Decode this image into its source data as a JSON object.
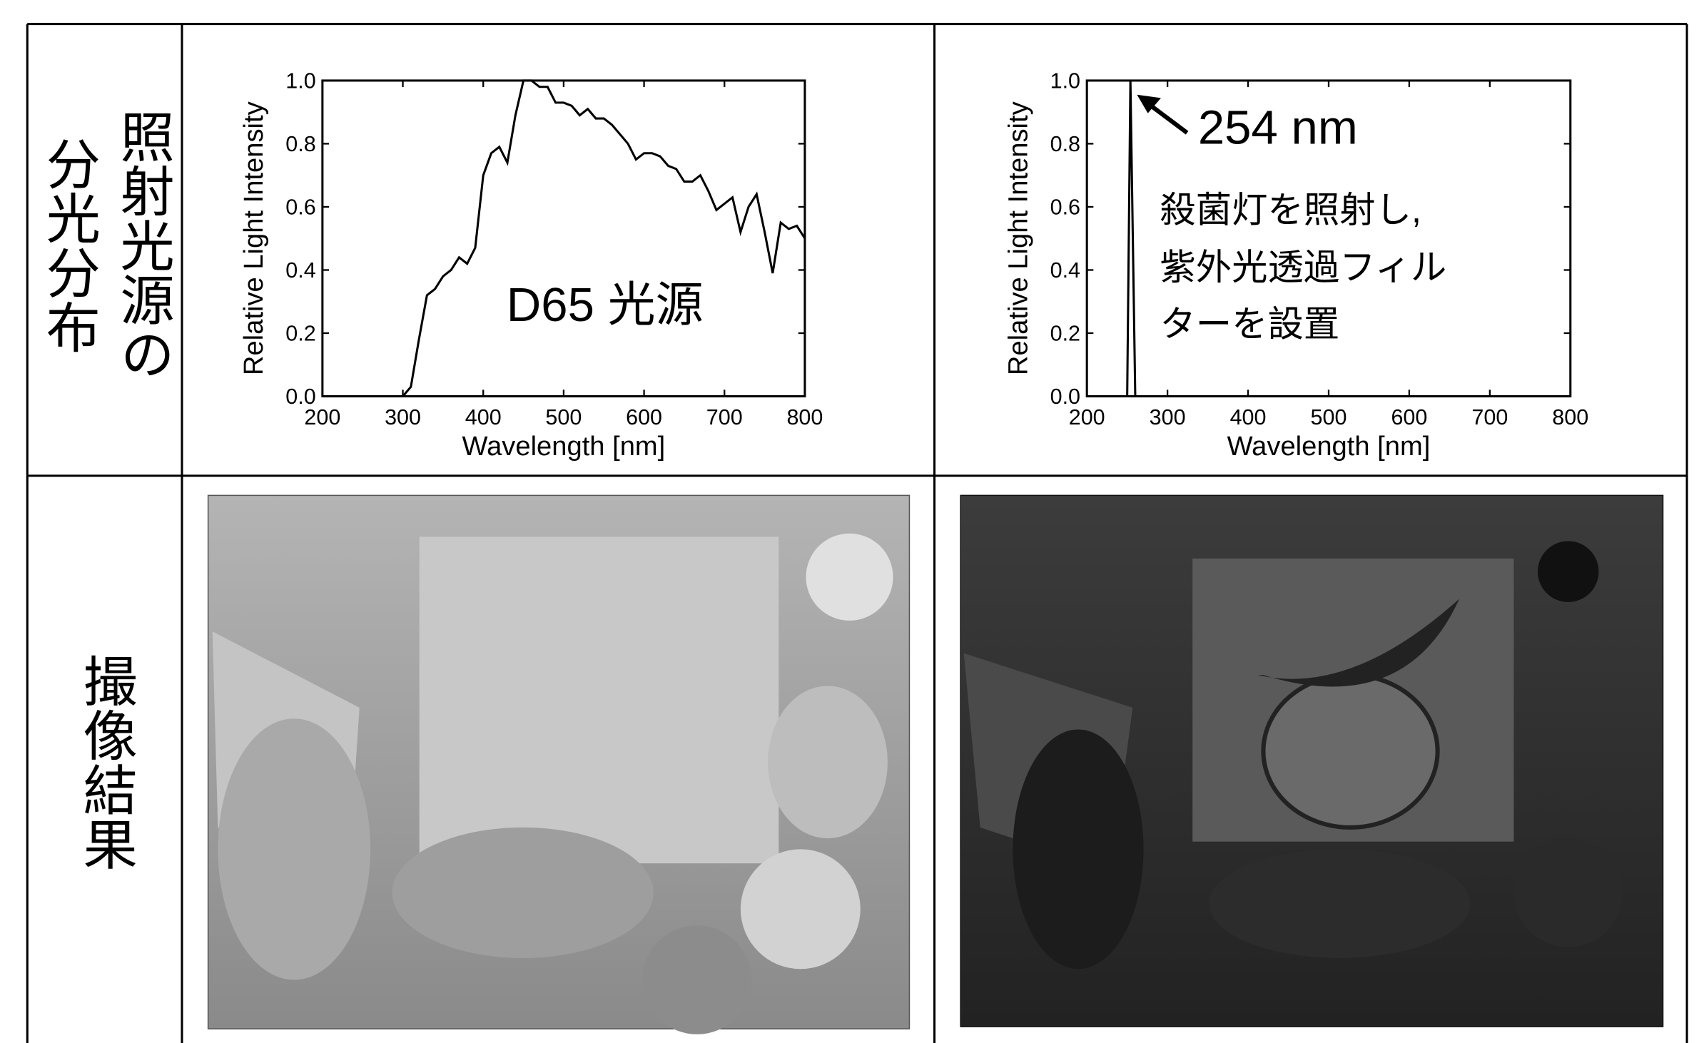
{
  "table": {
    "row_labels": [
      [
        "照射光源の",
        "分光分布"
      ],
      [
        "撮像結果"
      ]
    ]
  },
  "chart_data": [
    {
      "type": "line",
      "x": [
        300,
        310,
        320,
        330,
        340,
        350,
        360,
        370,
        380,
        390,
        400,
        410,
        420,
        430,
        440,
        450,
        460,
        470,
        480,
        490,
        500,
        510,
        520,
        530,
        540,
        550,
        560,
        570,
        580,
        590,
        600,
        610,
        620,
        630,
        640,
        650,
        660,
        670,
        680,
        690,
        700,
        710,
        720,
        730,
        740,
        750,
        760,
        770,
        780,
        790,
        800
      ],
      "series": [
        {
          "color": "#000000",
          "values": [
            0.0,
            0.03,
            0.18,
            0.32,
            0.34,
            0.38,
            0.4,
            0.44,
            0.42,
            0.47,
            0.7,
            0.77,
            0.79,
            0.74,
            0.89,
            1.0,
            1.0,
            0.98,
            0.98,
            0.93,
            0.93,
            0.92,
            0.89,
            0.91,
            0.88,
            0.88,
            0.86,
            0.83,
            0.8,
            0.75,
            0.77,
            0.77,
            0.76,
            0.73,
            0.72,
            0.68,
            0.68,
            0.7,
            0.65,
            0.59,
            0.61,
            0.63,
            0.52,
            0.6,
            0.64,
            0.52,
            0.39,
            0.55,
            0.53,
            0.54,
            0.5
          ]
        }
      ],
      "xlim": [
        200,
        800
      ],
      "ylim": [
        0,
        1
      ],
      "xticks": [
        200,
        300,
        400,
        500,
        600,
        700,
        800
      ],
      "yticks": [
        {
          "value": 0,
          "label": "0.0"
        },
        0.2,
        0.4,
        0.6,
        0.8,
        {
          "value": 1,
          "label": "1.0"
        }
      ],
      "xlabel": "Wavelength [nm]",
      "ylabel": "Relative Light Intensity",
      "annotations": [
        "D65 光源"
      ]
    },
    {
      "type": "line",
      "x": [
        250,
        254,
        260
      ],
      "series": [
        {
          "color": "#000000",
          "values": [
            0,
            1,
            0
          ]
        }
      ],
      "xlim": [
        200,
        800
      ],
      "ylim": [
        0,
        1
      ],
      "xticks": [
        200,
        300,
        400,
        500,
        600,
        700,
        800
      ],
      "yticks": [
        {
          "value": 0,
          "label": "0.0"
        },
        0.2,
        0.4,
        0.6,
        0.8,
        {
          "value": 1,
          "label": "1.0"
        }
      ],
      "xlabel": "Wavelength [nm]",
      "ylabel": "Relative Light Intensity",
      "annotations": [
        "254 nm",
        "殺菌灯を照射し,",
        "紫外光透過フィル",
        "ターを設置"
      ]
    }
  ]
}
